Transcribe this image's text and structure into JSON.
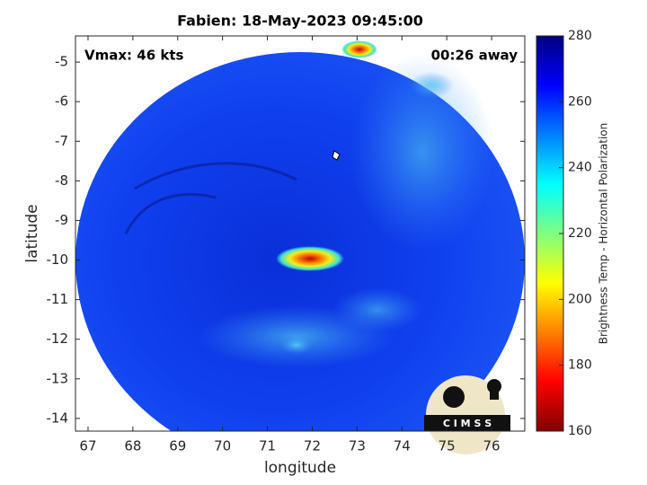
{
  "chart_data": {
    "type": "image",
    "title": "Fabien: 18-May-2023 09:45:00",
    "annotations": [
      "Vmax: 46 kts",
      "00:26 away"
    ],
    "x_label": "longitude",
    "y_label": "latitude",
    "xlim": [
      66.72,
      76.74
    ],
    "xticks": [
      67,
      68,
      69,
      70,
      71,
      72,
      73,
      74,
      75,
      76
    ],
    "ylim": [
      -14.32,
      -4.34
    ],
    "yticks": [
      -14,
      -13,
      -12,
      -11,
      -10,
      -9,
      -8,
      -7,
      -6,
      -5
    ],
    "colorbar": {
      "label": "Brightness Temp - Horizontal Polarization",
      "colormap": "jet",
      "lim": [
        160,
        280
      ],
      "ticks": [
        160,
        180,
        200,
        220,
        240,
        260,
        280
      ]
    },
    "logo_text": "C I M S S"
  }
}
